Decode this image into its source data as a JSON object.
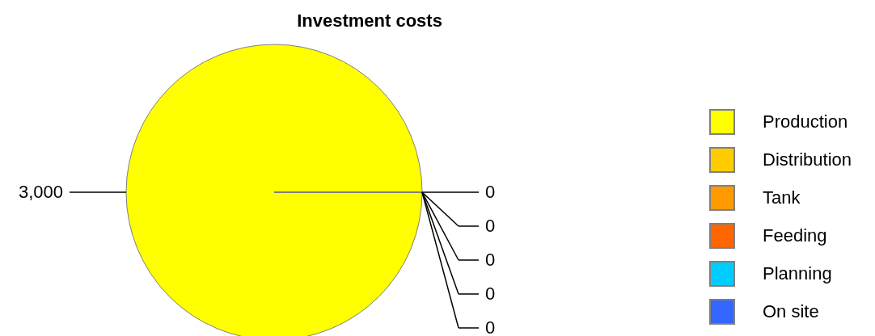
{
  "chart_data": {
    "type": "pie",
    "title": "Investment costs",
    "categories": [
      "Production",
      "Distribution",
      "Tank",
      "Feeding",
      "Planning",
      "On site"
    ],
    "values": [
      3000,
      0,
      0,
      0,
      0,
      0
    ],
    "value_labels": [
      "3,000",
      "0",
      "0",
      "0",
      "0",
      "0"
    ],
    "colors": [
      "#ffff00",
      "#ffcc00",
      "#ff9900",
      "#ff6600",
      "#00ccff",
      "#3366ff"
    ],
    "legend": "right"
  }
}
